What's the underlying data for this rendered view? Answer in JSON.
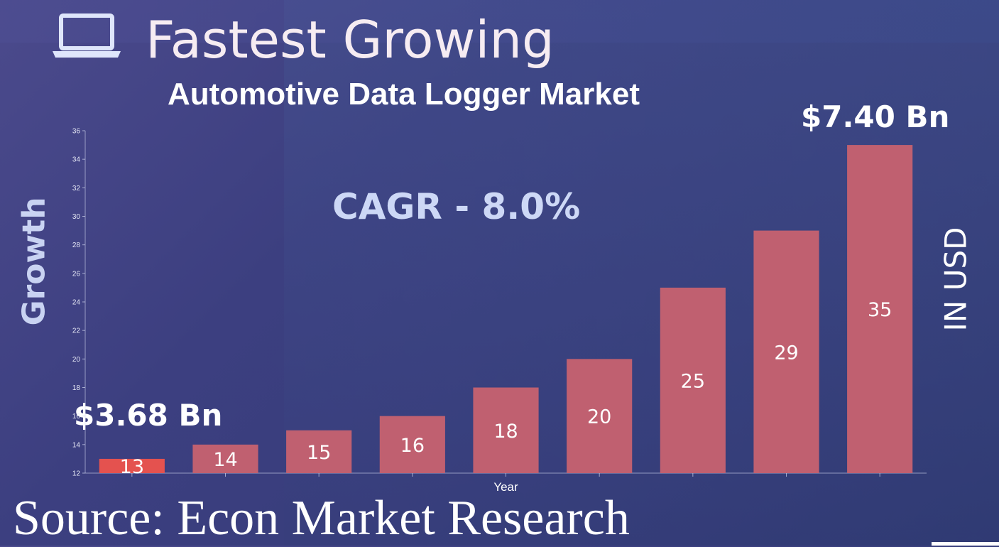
{
  "header": {
    "icon": "laptop-icon",
    "title": "Fastest Growing",
    "subtitle": "Automotive Data Logger Market"
  },
  "annotations": {
    "cagr": "CAGR - 8.0%",
    "start_value": "$3.68 Bn",
    "end_value": "$7.40 Bn",
    "y_label_left": "Growth",
    "y_label_right": "IN USD"
  },
  "footer": {
    "source": "Source: Econ Market Research"
  },
  "colors": {
    "first_bar": "#e4524f",
    "bar": "#c06070",
    "title": "#f6ecf2",
    "accent_text": "#cdd8f6"
  },
  "chart_data": {
    "type": "bar",
    "title": "Automotive Data Logger Market",
    "xlabel": "Year",
    "ylabel": "Growth",
    "categories": [
      "",
      "",
      "",
      "",
      "",
      "",
      "",
      "",
      ""
    ],
    "values": [
      13,
      14,
      15,
      16,
      18,
      20,
      25,
      29,
      35
    ],
    "ylim": [
      12,
      36
    ],
    "yticks": [
      12,
      14,
      16,
      18,
      20,
      22,
      24,
      26,
      28,
      30,
      32,
      34,
      36
    ],
    "grid": false,
    "legend": "none"
  }
}
